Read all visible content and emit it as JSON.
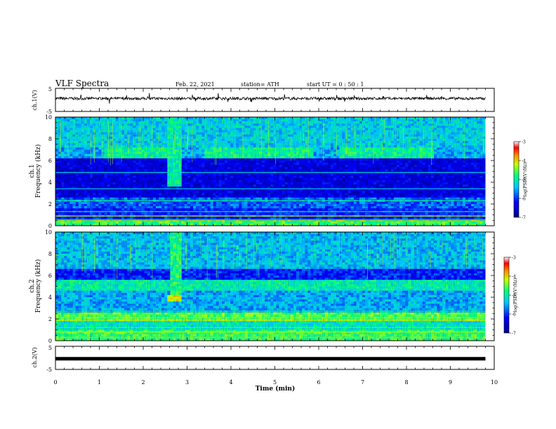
{
  "header": {
    "title": "VLF Spectra",
    "date": "Feb. 22, 2021",
    "station": "station= ATH",
    "start": "start  UT =   0 : 50 : 1"
  },
  "chart_data": [
    {
      "type": "line",
      "panel": "ch1-waveform",
      "ylabel": "ch.1(V)",
      "ylim": [
        -5,
        5
      ],
      "yticks": [
        "5",
        "-5"
      ],
      "xlim": [
        0,
        10
      ],
      "signal_level": 0.6,
      "signal_end_min": 9.8
    },
    {
      "type": "heatmap",
      "panel": "ch1-spectrogram",
      "ylabel_top": "ch.1",
      "ylabel": "Frequency (kHz)",
      "ylim": [
        0,
        10
      ],
      "yticks": [
        "0",
        "2",
        "4",
        "6",
        "8",
        "10"
      ],
      "xlim": [
        0,
        10
      ],
      "colorbar": {
        "label": "log(PSD)(V²/Hz)",
        "range": [
          -7,
          -3
        ],
        "ticks": [
          "-3",
          "-4",
          "-5",
          "-6",
          "-7"
        ]
      }
    },
    {
      "type": "heatmap",
      "panel": "ch2-spectrogram",
      "ylabel_top": "ch.2",
      "ylabel": "Frequency (kHz)",
      "ylim": [
        0,
        10
      ],
      "yticks": [
        "0",
        "2",
        "4",
        "6",
        "8",
        "10"
      ],
      "xlim": [
        0,
        10
      ],
      "colorbar": {
        "label": "log(PSD)(V²/Hz)",
        "range": [
          -7,
          -3
        ],
        "ticks": [
          "-3",
          "-4",
          "-5",
          "-6",
          "-7"
        ]
      }
    },
    {
      "type": "line",
      "panel": "ch2-waveform",
      "ylabel": "ch.2(V)",
      "ylim": [
        -5,
        5
      ],
      "yticks": [
        "5",
        "-5"
      ],
      "xlim": [
        0,
        10
      ],
      "signal_level": -0.4,
      "signal_end_min": 9.8,
      "xlabel": "Time (min)",
      "xticks": [
        "0",
        "1",
        "2",
        "3",
        "4",
        "5",
        "6",
        "7",
        "8",
        "9",
        "10"
      ]
    }
  ]
}
